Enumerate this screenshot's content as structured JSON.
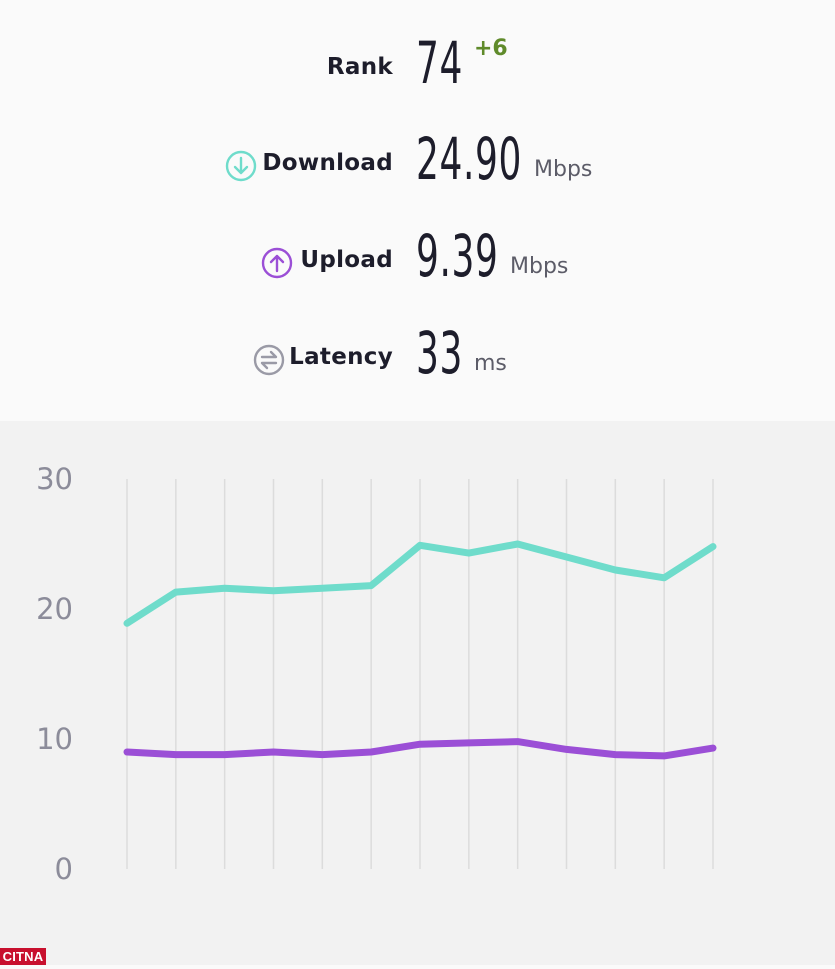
{
  "stats": {
    "rank": {
      "label": "Rank",
      "value": "74",
      "delta": "+6"
    },
    "download": {
      "label": "Download",
      "value": "24.90",
      "unit": "Mbps",
      "icon": "arrow-down-circle-icon",
      "color": "#6fdccb"
    },
    "upload": {
      "label": "Upload",
      "value": "9.39",
      "unit": "Mbps",
      "icon": "arrow-up-circle-icon",
      "color": "#9b4fd6"
    },
    "latency": {
      "label": "Latency",
      "value": "33",
      "unit": "ms",
      "icon": "latency-arrows-icon",
      "color": "#9a9aa6"
    }
  },
  "chart_data": {
    "type": "line",
    "title": "",
    "xlabel": "",
    "ylabel": "",
    "ylim": [
      0,
      30
    ],
    "yticks": [
      "0",
      "10",
      "20",
      "30"
    ],
    "grid": "vertical",
    "x": [
      1,
      2,
      3,
      4,
      5,
      6,
      7,
      8,
      9,
      10,
      11,
      12,
      13
    ],
    "series": [
      {
        "color": "#6fdccb",
        "values": [
          18.9,
          21.3,
          21.6,
          21.4,
          21.6,
          21.8,
          24.9,
          24.3,
          25.0,
          24.0,
          23.0,
          22.4,
          24.8
        ]
      },
      {
        "color": "#9b4fd6",
        "values": [
          9.0,
          8.8,
          8.8,
          9.0,
          8.8,
          9.0,
          9.6,
          9.7,
          9.8,
          9.2,
          8.8,
          8.7,
          9.3
        ]
      }
    ]
  },
  "watermark": {
    "text": "CITNA"
  }
}
